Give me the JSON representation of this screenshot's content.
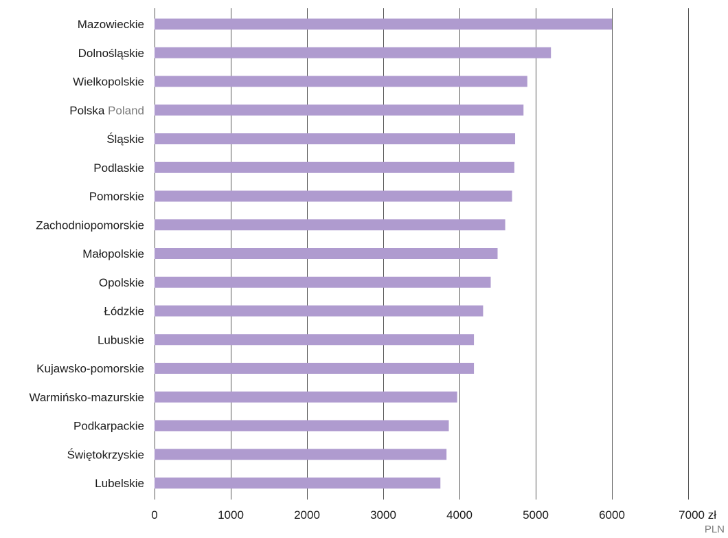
{
  "chart_data": {
    "type": "bar",
    "orientation": "horizontal",
    "categories": [
      "Mazowieckie",
      "Dolnośląskie",
      "Wielkopolskie",
      "Polska",
      "Śląskie",
      "Podlaskie",
      "Pomorskie",
      "Zachodniopomorskie",
      "Małopolskie",
      "Opolskie",
      "Łódzkie",
      "Lubuskie",
      "Kujawsko-pomorskie",
      "Warmińsko-mazurskie",
      "Podkarpackie",
      "Świętokrzyskie",
      "Lubelskie"
    ],
    "category_translations": {
      "Polska": "Poland"
    },
    "values": [
      6000,
      5200,
      4890,
      4840,
      4730,
      4720,
      4690,
      4600,
      4500,
      4410,
      4310,
      4190,
      4190,
      3970,
      3860,
      3830,
      3750
    ],
    "xlim": [
      0,
      7000
    ],
    "xticks": [
      0,
      1000,
      2000,
      3000,
      4000,
      5000,
      6000,
      7000
    ],
    "x_unit": "zł",
    "x_unit_en": "PLN",
    "grid": "vertical",
    "bar_color": "#af9bcf"
  }
}
